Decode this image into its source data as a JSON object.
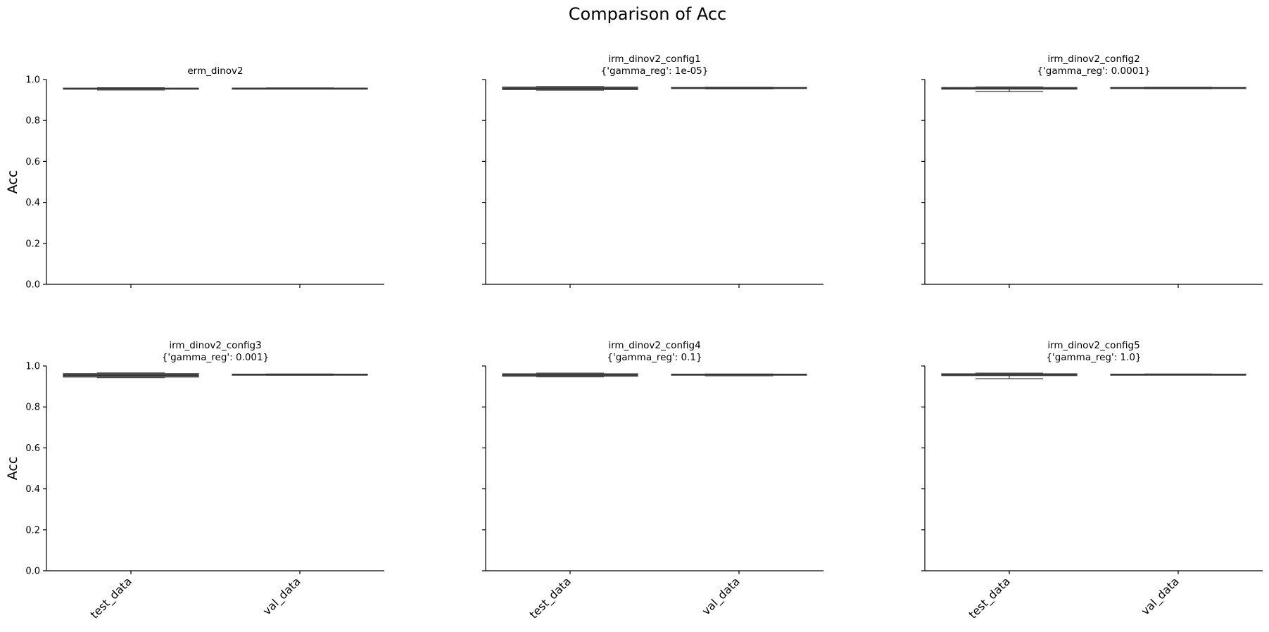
{
  "figure": {
    "title": "Comparison of Acc"
  },
  "chart_data": {
    "type": "box",
    "ylabel": "Acc",
    "ylim": [
      0,
      1.0
    ],
    "yticks": [
      "0.0",
      "0.2",
      "0.4",
      "0.6",
      "0.8",
      "1.0"
    ],
    "categories": [
      "test_data",
      "val_data"
    ],
    "box_color": "#4a4a4a",
    "panels": [
      {
        "title": [
          "erm_dinov2"
        ],
        "boxes": [
          {
            "category": "test_data",
            "whislo": 0.949,
            "q1": 0.953,
            "med": 0.955,
            "q3": 0.958,
            "whishi": 0.96
          },
          {
            "category": "val_data",
            "whislo": 0.954,
            "q1": 0.955,
            "med": 0.957,
            "q3": 0.958,
            "whishi": 0.959
          }
        ]
      },
      {
        "title": [
          "irm_dinov2_config1",
          "{'gamma_reg': 1e-05}"
        ],
        "boxes": [
          {
            "category": "test_data",
            "whislo": 0.948,
            "q1": 0.951,
            "med": 0.957,
            "q3": 0.963,
            "whishi": 0.966
          },
          {
            "category": "val_data",
            "whislo": 0.954,
            "q1": 0.957,
            "med": 0.959,
            "q3": 0.961,
            "whishi": 0.962
          }
        ]
      },
      {
        "title": [
          "irm_dinov2_config2",
          "{'gamma_reg': 0.0001}"
        ],
        "boxes": [
          {
            "category": "test_data",
            "whislo": 0.941,
            "q1": 0.953,
            "med": 0.957,
            "q3": 0.961,
            "whishi": 0.964
          },
          {
            "category": "val_data",
            "whislo": 0.955,
            "q1": 0.957,
            "med": 0.959,
            "q3": 0.961,
            "whishi": 0.962
          }
        ]
      },
      {
        "title": [
          "irm_dinov2_config3",
          "{'gamma_reg': 0.001}"
        ],
        "boxes": [
          {
            "category": "test_data",
            "whislo": 0.943,
            "q1": 0.946,
            "med": 0.955,
            "q3": 0.963,
            "whishi": 0.966
          },
          {
            "category": "val_data",
            "whislo": 0.955,
            "q1": 0.956,
            "med": 0.958,
            "q3": 0.96,
            "whishi": 0.961
          }
        ]
      },
      {
        "title": [
          "irm_dinov2_config4",
          "{'gamma_reg': 0.1}"
        ],
        "boxes": [
          {
            "category": "test_data",
            "whislo": 0.947,
            "q1": 0.95,
            "med": 0.956,
            "q3": 0.962,
            "whishi": 0.965
          },
          {
            "category": "val_data",
            "whislo": 0.952,
            "q1": 0.955,
            "med": 0.958,
            "q3": 0.96,
            "whishi": 0.961
          }
        ]
      },
      {
        "title": [
          "irm_dinov2_config5",
          "{'gamma_reg': 1.0}"
        ],
        "boxes": [
          {
            "category": "test_data",
            "whislo": 0.938,
            "q1": 0.953,
            "med": 0.957,
            "q3": 0.962,
            "whishi": 0.965
          },
          {
            "category": "val_data",
            "whislo": 0.956,
            "q1": 0.957,
            "med": 0.959,
            "q3": 0.96,
            "whishi": 0.961
          }
        ]
      }
    ]
  }
}
